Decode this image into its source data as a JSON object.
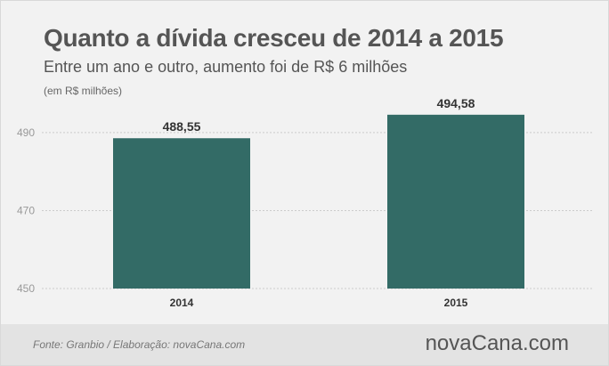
{
  "header": {
    "title": "Quanto a dívida cresceu de 2014 a 2015",
    "subtitle": "Entre um ano e outro, aumento foi de R$ 6 milhões",
    "unit_note": "(em R$ milhões)"
  },
  "footer": {
    "source": "Fonte: Granbio / Elaboração: novaCana.com",
    "logo": "novaCana.com"
  },
  "colors": {
    "bar": "#336b66",
    "axis_text": "#999999",
    "label_text": "#333333",
    "grid": "#cccccc"
  },
  "chart_data": {
    "type": "bar",
    "categories": [
      "2014",
      "2015"
    ],
    "values": [
      488.55,
      494.58
    ],
    "value_labels": [
      "488,55",
      "494,58"
    ],
    "y_ticks": [
      450,
      470,
      490
    ],
    "ylim": [
      450,
      495
    ],
    "grid": true
  }
}
